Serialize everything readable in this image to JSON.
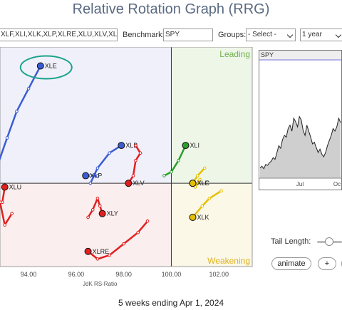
{
  "title": "Relative Rotation Graph (RRG)",
  "controls": {
    "symbols_value": "XLF,XLI,XLK,XLP,XLRE,XLU,XLV,XL",
    "benchmark_label": "Benchmark:",
    "benchmark_value": "SPY",
    "groups_label": "Groups:",
    "groups_value": "- Select -",
    "period_value": "1 year"
  },
  "chart_data": {
    "type": "scatter",
    "xlabel": "JdK RS-Ratio",
    "xlim": [
      92.8,
      103.4
    ],
    "ylim": [
      97.8,
      103.6
    ],
    "x_ticks": [
      "94.00",
      "96.00",
      "98.00",
      "100.00",
      "102.00"
    ],
    "x_tick_values": [
      94,
      96,
      98,
      100,
      102
    ],
    "quadrants": {
      "leading": "Leading",
      "weakening": "Weakening",
      "colors": {
        "leading": "#eef6e8",
        "weakening": "#fbf8e8",
        "lagging": "#fbeeee",
        "improving": "#f0f0fa"
      }
    },
    "series": [
      {
        "name": "XLE",
        "color": "#3b5bd4",
        "points": [
          [
            92.6,
            100.3
          ],
          [
            93.1,
            101.2
          ],
          [
            93.5,
            101.9
          ],
          [
            94.0,
            102.5
          ],
          [
            94.5,
            103.1
          ]
        ]
      },
      {
        "name": "XLB",
        "color": "#3b5bd4",
        "points": [
          [
            96.6,
            100.0
          ],
          [
            96.9,
            100.4
          ],
          [
            97.4,
            100.8
          ],
          [
            97.9,
            101.0
          ]
        ]
      },
      {
        "name": "XLP",
        "color": "#3b5bd4",
        "points": [
          [
            96.6,
            100.2
          ],
          [
            96.9,
            100.2
          ],
          [
            96.4,
            100.2
          ],
          [
            96.4,
            100.2
          ]
        ]
      },
      {
        "name": "XLY",
        "color": "#e02020",
        "points": [
          [
            96.5,
            99.1
          ],
          [
            96.7,
            99.3
          ],
          [
            96.9,
            99.6
          ],
          [
            97.0,
            99.4
          ],
          [
            97.1,
            99.2
          ]
        ]
      },
      {
        "name": "XLV",
        "color": "#e02020",
        "points": [
          [
            98.5,
            101.0
          ],
          [
            98.7,
            100.8
          ],
          [
            98.5,
            100.6
          ],
          [
            98.4,
            100.2
          ],
          [
            98.2,
            100.0
          ]
        ]
      },
      {
        "name": "XLU",
        "color": "#e02020",
        "points": [
          [
            93.3,
            99.2
          ],
          [
            93.0,
            98.9
          ],
          [
            92.8,
            99.5
          ],
          [
            92.9,
            99.5
          ],
          [
            93.0,
            99.9
          ]
        ]
      },
      {
        "name": "XLRE",
        "color": "#e02020",
        "points": [
          [
            99.0,
            99.0
          ],
          [
            98.6,
            98.7
          ],
          [
            98.0,
            98.4
          ],
          [
            97.4,
            98.1
          ],
          [
            96.9,
            98.0
          ],
          [
            96.5,
            98.2
          ]
        ]
      },
      {
        "name": "XLI",
        "color": "#2aa02a",
        "points": [
          [
            99.7,
            100.2
          ],
          [
            100.0,
            100.3
          ],
          [
            100.3,
            100.6
          ],
          [
            100.6,
            101.0
          ]
        ]
      },
      {
        "name": "XLF",
        "color": "#e6c000",
        "points": [
          [
            101.4,
            100.4
          ],
          [
            101.1,
            100.2
          ],
          [
            100.9,
            100.0
          ]
        ]
      },
      {
        "name": "XLC",
        "color": "#e6c000",
        "points": [
          [
            101.2,
            100.1
          ],
          [
            101.0,
            99.9
          ],
          [
            100.9,
            100.0
          ]
        ]
      },
      {
        "name": "XLK",
        "color": "#e6c000",
        "points": [
          [
            102.1,
            99.8
          ],
          [
            101.6,
            99.6
          ],
          [
            101.3,
            99.4
          ],
          [
            100.9,
            99.1
          ]
        ]
      }
    ],
    "highlight": "XLE"
  },
  "mini_chart": {
    "label": "SPY",
    "x_ticks": [
      "Jul",
      "Oc"
    ],
    "values": [
      0.12,
      0.14,
      0.11,
      0.16,
      0.15,
      0.18,
      0.2,
      0.24,
      0.22,
      0.3,
      0.38,
      0.35,
      0.45,
      0.5,
      0.48,
      0.58,
      0.62,
      0.55,
      0.7,
      0.66,
      0.6,
      0.72,
      0.68,
      0.56,
      0.5,
      0.62,
      0.55,
      0.48,
      0.4,
      0.42,
      0.36,
      0.3,
      0.34,
      0.28,
      0.25,
      0.3,
      0.38,
      0.44,
      0.5,
      0.58,
      0.55,
      0.6,
      0.7,
      0.65
    ]
  },
  "tail_length_label": "Tail Length:",
  "buttons": {
    "animate": "animate",
    "plus": "+"
  },
  "footer": "5 weeks ending Apr 1, 2024",
  "colors": {
    "accent": "#5a6a82",
    "oval": "#1aa38a"
  }
}
